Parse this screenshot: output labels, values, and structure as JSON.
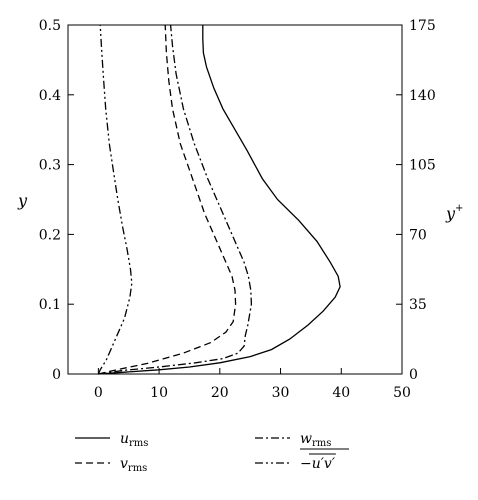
{
  "chart_data": {
    "type": "line",
    "xlim": [
      -5,
      50
    ],
    "ylim": [
      0,
      0.5
    ],
    "y2lim": [
      0,
      175
    ],
    "xticks": [
      0,
      10,
      20,
      30,
      40,
      50
    ],
    "xtick_labels": [
      "0",
      "10",
      "20",
      "30",
      "40",
      "50"
    ],
    "yticks": [
      0,
      0.1,
      0.2,
      0.3,
      0.4,
      0.5
    ],
    "ytick_labels": [
      "0",
      "0.1",
      "0.2",
      "0.3",
      "0.4",
      "0.5"
    ],
    "y2ticks": [
      0,
      35,
      70,
      105,
      140,
      175
    ],
    "y2tick_labels": [
      "0",
      "35",
      "70",
      "105",
      "140",
      "175"
    ],
    "ylabel": "y",
    "y2label_base": "y",
    "y2label_sup": "+",
    "grid": false,
    "legend_position": "bottom",
    "series": [
      {
        "key": "urms",
        "name_base": "u",
        "name_sub": "rms",
        "dash": "",
        "x": [
          0.0,
          5.0,
          10.0,
          15.0,
          20.0,
          25.0,
          28.5,
          31.5,
          34.5,
          37.0,
          39.0,
          39.8,
          39.5,
          38.2,
          36.0,
          33.0,
          29.5,
          27.0,
          24.5,
          22.5,
          20.5,
          19.0,
          17.8,
          17.3,
          17.2,
          17.2
        ],
        "y": [
          0.0,
          0.003,
          0.006,
          0.01,
          0.016,
          0.025,
          0.035,
          0.05,
          0.07,
          0.09,
          0.11,
          0.125,
          0.14,
          0.16,
          0.19,
          0.22,
          0.25,
          0.28,
          0.32,
          0.35,
          0.38,
          0.41,
          0.44,
          0.46,
          0.48,
          0.5
        ]
      },
      {
        "key": "vrms",
        "name_base": "v",
        "name_sub": "rms",
        "dash": "7,4",
        "x": [
          0.0,
          3.0,
          8.0,
          14.0,
          18.5,
          21.0,
          22.2,
          22.6,
          22.5,
          22.0,
          21.0,
          19.5,
          17.5,
          15.5,
          13.5,
          12.2,
          11.6,
          11.2,
          11.0
        ],
        "y": [
          0.0,
          0.006,
          0.015,
          0.03,
          0.045,
          0.06,
          0.075,
          0.1,
          0.12,
          0.14,
          0.16,
          0.19,
          0.23,
          0.28,
          0.33,
          0.38,
          0.42,
          0.46,
          0.5
        ]
      },
      {
        "key": "wrms",
        "name_base": "w",
        "name_sub": "rms",
        "dash": "8,3,2,3",
        "x": [
          0.0,
          4.0,
          10.0,
          16.0,
          20.5,
          23.0,
          24.0,
          24.2,
          24.6,
          25.2,
          25.1,
          24.7,
          24.0,
          22.5,
          20.5,
          18.0,
          15.8,
          14.0,
          12.8,
          12.2,
          11.9
        ],
        "y": [
          0.0,
          0.005,
          0.01,
          0.016,
          0.022,
          0.03,
          0.04,
          0.055,
          0.07,
          0.1,
          0.12,
          0.14,
          0.16,
          0.19,
          0.23,
          0.28,
          0.33,
          0.38,
          0.43,
          0.47,
          0.5
        ]
      },
      {
        "key": "uv",
        "name_base": "−u′v′",
        "name_sub": "",
        "dash": "8,3,2,3,2,3",
        "x": [
          0.0,
          0.3,
          1.3,
          2.8,
          4.3,
          5.2,
          5.5,
          5.3,
          4.7,
          4.0,
          3.2,
          2.5,
          1.8,
          1.2,
          0.8,
          0.5,
          0.3
        ],
        "y": [
          0.0,
          0.006,
          0.02,
          0.05,
          0.08,
          0.11,
          0.13,
          0.15,
          0.18,
          0.21,
          0.25,
          0.29,
          0.33,
          0.38,
          0.43,
          0.47,
          0.5
        ]
      }
    ]
  }
}
